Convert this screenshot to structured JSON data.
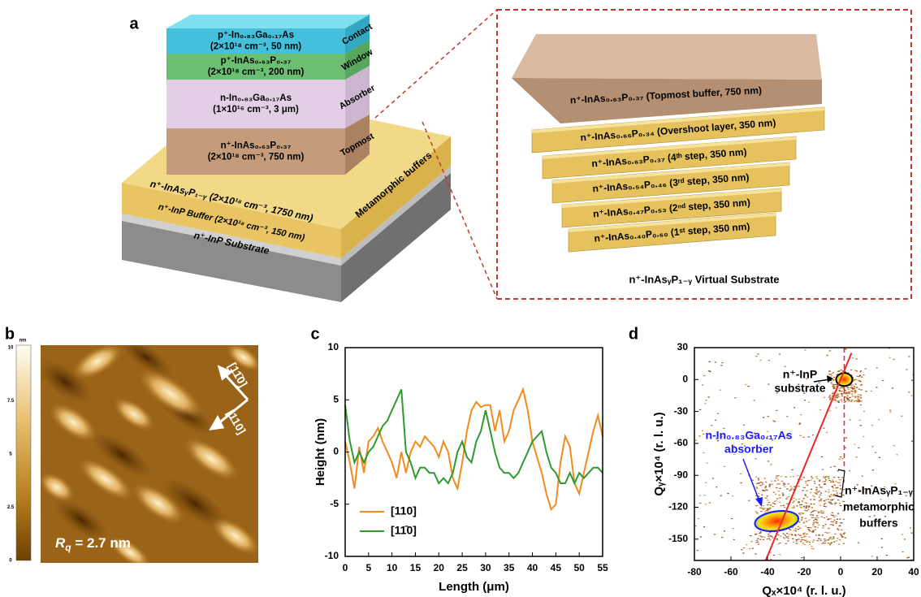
{
  "panel_labels": [
    "a",
    "b",
    "c",
    "d"
  ],
  "panel_a": {
    "stack_layers": [
      {
        "lines": [
          "p⁺-In₀.₈₃Ga₀.₁₇As",
          "(2×10¹⁸ cm⁻³, 50 nm)"
        ],
        "side": "Contact"
      },
      {
        "lines": [
          "p⁺-InAs₀.₆₃P₀.₃₇",
          "(2×10¹⁸ cm⁻³, 200 nm)"
        ],
        "side": "Window"
      },
      {
        "lines": [
          "n-In₀.₈₃Ga₀.₁₇As",
          "(1×10¹⁶ cm⁻³, 3 μm)"
        ],
        "side": "Absorber"
      },
      {
        "lines": [
          "n⁺-InAs₀.₆₃P₀.₃₇",
          "(2×10¹⁸ cm⁻³, 750 nm)"
        ],
        "side": "Topmost"
      }
    ],
    "base_layers": [
      "n⁺-InAsᵧP₁₋ᵧ (2×10¹⁸ cm⁻³, 1750 nm)",
      "n⁺-InP Buffer (2×10¹⁸ cm⁻³, 150 nm)",
      "n⁺-InP Substrate"
    ],
    "base_side": "Metamorphic buffers",
    "inset_layers": [
      "n⁺-InAs₀.₆₃P₀.₃₇ (Topmost buffer, 750 nm)",
      "n⁺-InAs₀.₆₆P₀.₃₄ (Overshoot layer, 350 nm)",
      "n⁺-InAs₀.₆₃P₀.₃₇ (4ᵗʰ step, 350 nm)",
      "n⁺-InAs₀.₅₄P₀.₄₆ (3ʳᵈ step, 350 nm)",
      "n⁺-InAs₀.₄₇P₀.₅₃ (2ⁿᵈ step, 350 nm)",
      "n⁺-InAs₀.₄₀P₀.₆₀ (1ˢᵗ step, 350 nm)"
    ],
    "inset_caption": "n⁺-InAsᵧP₁₋ᵧ Virtual Substrate"
  },
  "panel_b": {
    "colorbar_unit": "nm",
    "colorbar_ticks": [
      10,
      7.5,
      5,
      2.5,
      0
    ],
    "directions": [
      "[11̄0]",
      "[110]"
    ],
    "roughness_symbol": "R",
    "roughness_subscript": "q",
    "roughness_value": " = 2.7 nm"
  },
  "chart_data": [
    {
      "type": "line",
      "xlabel": "Length (μm)",
      "ylabel": "Height (nm)",
      "x": [
        0,
        1,
        2,
        3,
        4,
        5,
        6,
        7,
        8,
        9,
        10,
        11,
        12,
        13,
        14,
        15,
        16,
        17,
        18,
        19,
        20,
        21,
        22,
        23,
        24,
        25,
        26,
        27,
        28,
        29,
        30,
        31,
        32,
        33,
        34,
        35,
        36,
        37,
        38,
        39,
        40,
        41,
        42,
        43,
        44,
        45,
        46,
        47,
        48,
        49,
        50,
        51,
        52,
        53,
        54,
        55
      ],
      "xlim": [
        0,
        55
      ],
      "xticks": [
        0,
        5,
        10,
        15,
        20,
        25,
        30,
        35,
        40,
        45,
        50,
        55
      ],
      "ylim": [
        -10,
        10
      ],
      "yticks": [
        -10,
        -5,
        0,
        5,
        10
      ],
      "legend": "lower left",
      "series": [
        {
          "name": "[110]",
          "color": "#f28a1e",
          "values": [
            1,
            -1,
            -3.5,
            0.5,
            -2,
            1,
            1.5,
            2.3,
            1,
            0,
            -1,
            -2.5,
            0,
            -2,
            0,
            1,
            0.5,
            1.5,
            1,
            0.5,
            -0.5,
            1,
            0,
            -2.5,
            -3.5,
            -1,
            2,
            4,
            4.8,
            4.3,
            4.5,
            4.5,
            2,
            4,
            1,
            2,
            4,
            5,
            6,
            4,
            1,
            -0.5,
            -2,
            -4,
            -5.5,
            -5,
            -1,
            1.5,
            0.5,
            -3,
            -4,
            -2,
            0,
            2,
            3.5,
            1.5
          ]
        },
        {
          "name": "[11̄0]",
          "color": "#2e9a2e",
          "values": [
            4.5,
            1,
            -1,
            0,
            -1,
            0,
            0.5,
            1.5,
            2.5,
            3,
            4,
            5,
            6,
            0,
            -1,
            -2.5,
            -1.5,
            -1.5,
            -2,
            -2,
            -3,
            -2.5,
            -3,
            -2,
            0,
            1,
            -0.5,
            -1,
            1,
            2,
            4,
            2,
            0,
            -1.5,
            -2,
            -2,
            -2.5,
            -2,
            -1,
            0,
            1,
            1.5,
            2,
            0,
            -1.5,
            -2,
            -3,
            -3,
            -2,
            -3,
            -2,
            -2.5,
            -2,
            -1.5,
            -1.5,
            -2
          ]
        }
      ]
    },
    {
      "type": "scatter",
      "xlabel": "Qₓ×10⁴ (r. l. u.)",
      "ylabel": "Qᵧ×10⁴ (r. l. u.)",
      "xlim": [
        -80,
        40
      ],
      "xticks": [
        -80,
        -60,
        -40,
        -20,
        0,
        20,
        40
      ],
      "ylim": [
        -170,
        30
      ],
      "yticks": [
        30,
        0,
        -30,
        -60,
        -90,
        -120,
        -150
      ],
      "peaks": {
        "x": [
          2,
          -35
        ],
        "y": [
          0,
          -133
        ]
      },
      "fit_line": {
        "x": [
          -41,
          6
        ],
        "y": [
          -170,
          25
        ],
        "color": "#e8282a"
      },
      "reference_line": {
        "x": [
          2,
          2
        ],
        "y": [
          30,
          -85
        ],
        "color": "#e8282a"
      },
      "annotations": [
        {
          "lines": [
            "n⁺-InP",
            "substrate"
          ],
          "color": "#000000"
        },
        {
          "lines": [
            "n-In₀.₈₃Ga₀.₁₇As",
            "absorber"
          ],
          "color": "#1a1aff"
        },
        {
          "lines": [
            "n⁺-InAsᵧP₁₋ᵧ",
            "metamorphic",
            "buffers"
          ],
          "color": "#000000"
        }
      ]
    }
  ]
}
